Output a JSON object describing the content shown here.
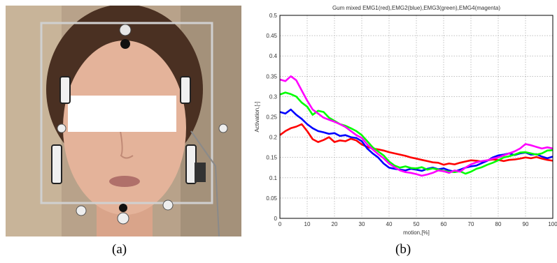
{
  "captions": {
    "a": "(a)",
    "b": "(b)"
  },
  "chart_data": {
    "type": "line",
    "title": "Gum mixed EMG1(red),EMG2(blue),EMG3(green),EMG4(magenta)",
    "xlabel": "motion,[%]",
    "ylabel": "Activation,[-]",
    "xlim": [
      0,
      100
    ],
    "ylim": [
      0,
      0.5
    ],
    "xticks": [
      "0",
      "10",
      "20",
      "30",
      "40",
      "50",
      "60",
      "70",
      "80",
      "90",
      "100"
    ],
    "yticks": [
      "0",
      "0.05",
      "0.1",
      "0.15",
      "0.2",
      "0.25",
      "0.3",
      "0.35",
      "0.4",
      "0.45",
      "0.5"
    ],
    "grid": true,
    "series": [
      {
        "name": "EMG1",
        "color": "#ff0000",
        "x": [
          0,
          2,
          4,
          6,
          8,
          10,
          12,
          14,
          16,
          18,
          20,
          22,
          24,
          26,
          28,
          30,
          32,
          34,
          36,
          38,
          40,
          42,
          44,
          46,
          48,
          50,
          52,
          54,
          56,
          58,
          60,
          62,
          64,
          66,
          68,
          70,
          72,
          74,
          76,
          78,
          80,
          82,
          84,
          86,
          88,
          90,
          92,
          94,
          96,
          98,
          100
        ],
        "y": [
          0.205,
          0.215,
          0.222,
          0.226,
          0.232,
          0.215,
          0.195,
          0.188,
          0.193,
          0.2,
          0.188,
          0.192,
          0.19,
          0.196,
          0.192,
          0.182,
          0.176,
          0.172,
          0.17,
          0.167,
          0.163,
          0.16,
          0.157,
          0.154,
          0.15,
          0.147,
          0.144,
          0.141,
          0.138,
          0.137,
          0.132,
          0.135,
          0.133,
          0.137,
          0.14,
          0.143,
          0.142,
          0.14,
          0.143,
          0.145,
          0.144,
          0.141,
          0.144,
          0.145,
          0.147,
          0.15,
          0.148,
          0.151,
          0.147,
          0.144,
          0.142
        ]
      },
      {
        "name": "EMG2",
        "color": "#0000ff",
        "x": [
          0,
          2,
          4,
          6,
          8,
          10,
          12,
          14,
          16,
          18,
          20,
          22,
          24,
          26,
          28,
          30,
          32,
          34,
          36,
          38,
          40,
          42,
          44,
          46,
          48,
          50,
          52,
          54,
          56,
          58,
          60,
          62,
          64,
          66,
          68,
          70,
          72,
          74,
          76,
          78,
          80,
          82,
          84,
          86,
          88,
          90,
          92,
          94,
          96,
          98,
          100
        ],
        "y": [
          0.262,
          0.258,
          0.268,
          0.255,
          0.245,
          0.232,
          0.222,
          0.215,
          0.212,
          0.208,
          0.21,
          0.203,
          0.205,
          0.2,
          0.198,
          0.19,
          0.172,
          0.16,
          0.15,
          0.135,
          0.125,
          0.122,
          0.12,
          0.118,
          0.122,
          0.12,
          0.117,
          0.122,
          0.125,
          0.121,
          0.123,
          0.118,
          0.115,
          0.12,
          0.125,
          0.128,
          0.13,
          0.136,
          0.142,
          0.15,
          0.155,
          0.157,
          0.16,
          0.156,
          0.16,
          0.162,
          0.157,
          0.158,
          0.152,
          0.148,
          0.152
        ]
      },
      {
        "name": "EMG3",
        "color": "#00ff00",
        "x": [
          0,
          2,
          4,
          6,
          8,
          10,
          12,
          14,
          16,
          18,
          20,
          22,
          24,
          26,
          28,
          30,
          32,
          34,
          36,
          38,
          40,
          42,
          44,
          46,
          48,
          50,
          52,
          54,
          56,
          58,
          60,
          62,
          64,
          66,
          68,
          70,
          72,
          74,
          76,
          78,
          80,
          82,
          84,
          86,
          88,
          90,
          92,
          94,
          96,
          98,
          100
        ],
        "y": [
          0.305,
          0.31,
          0.306,
          0.3,
          0.285,
          0.275,
          0.255,
          0.265,
          0.262,
          0.248,
          0.24,
          0.232,
          0.228,
          0.222,
          0.215,
          0.205,
          0.19,
          0.175,
          0.165,
          0.155,
          0.14,
          0.13,
          0.125,
          0.128,
          0.124,
          0.123,
          0.126,
          0.12,
          0.123,
          0.12,
          0.117,
          0.115,
          0.114,
          0.116,
          0.11,
          0.115,
          0.122,
          0.126,
          0.132,
          0.137,
          0.143,
          0.15,
          0.153,
          0.157,
          0.162,
          0.163,
          0.16,
          0.157,
          0.16,
          0.167,
          0.168
        ]
      },
      {
        "name": "EMG4",
        "color": "#ff00ff",
        "x": [
          0,
          2,
          4,
          6,
          8,
          10,
          12,
          14,
          16,
          18,
          20,
          22,
          24,
          26,
          28,
          30,
          32,
          34,
          36,
          38,
          40,
          42,
          44,
          46,
          48,
          50,
          52,
          54,
          56,
          58,
          60,
          62,
          64,
          66,
          68,
          70,
          72,
          74,
          76,
          78,
          80,
          82,
          84,
          86,
          88,
          90,
          92,
          94,
          96,
          98,
          100
        ],
        "y": [
          0.342,
          0.338,
          0.35,
          0.34,
          0.315,
          0.29,
          0.268,
          0.258,
          0.248,
          0.243,
          0.238,
          0.232,
          0.225,
          0.215,
          0.205,
          0.198,
          0.182,
          0.17,
          0.158,
          0.148,
          0.135,
          0.126,
          0.118,
          0.114,
          0.112,
          0.109,
          0.105,
          0.108,
          0.112,
          0.118,
          0.116,
          0.112,
          0.118,
          0.115,
          0.125,
          0.133,
          0.138,
          0.141,
          0.143,
          0.147,
          0.15,
          0.155,
          0.16,
          0.165,
          0.172,
          0.183,
          0.18,
          0.176,
          0.172,
          0.175,
          0.172
        ]
      }
    ]
  }
}
